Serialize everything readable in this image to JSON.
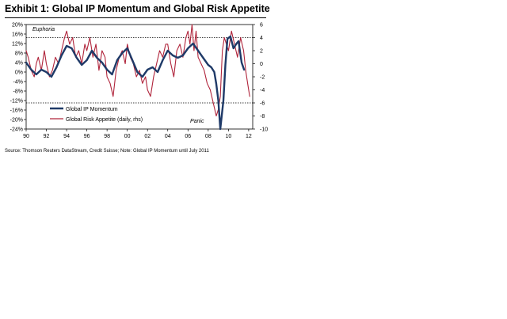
{
  "title": "Exhibit 1: Global IP Momentum and Global Risk Appetite",
  "source": "Source: Thomson Reuters DataStream, Credit Suisse; Note: Global IP Momentum until July 2011",
  "chart_data": {
    "type": "line",
    "x_ticks": [
      "90",
      "92",
      "94",
      "96",
      "98",
      "00",
      "02",
      "04",
      "06",
      "08",
      "10",
      "12"
    ],
    "xlim": [
      1990,
      2012.4
    ],
    "y_left_ticks": [
      "20%",
      "16%",
      "12%",
      "8%",
      "4%",
      "0%",
      "-4%",
      "-8%",
      "-12%",
      "-16%",
      "-20%",
      "-24%"
    ],
    "ylim_left": [
      -24,
      20
    ],
    "y_right_ticks": [
      "6",
      "4",
      "2",
      "0",
      "-2",
      "-4",
      "-6",
      "-8",
      "-10"
    ],
    "ylim_right": [
      -10,
      6
    ],
    "reference_lines_rhs": [
      4,
      -6
    ],
    "annotations": {
      "euphoria": "Euphoria",
      "panic": "Panic"
    },
    "legend": {
      "position": "bottom-left"
    },
    "series": [
      {
        "name": "Global IP Momentum",
        "axis": "left",
        "color": "#1f3a68",
        "x": [
          1990.0,
          1990.5,
          1991.0,
          1991.5,
          1992.0,
          1992.5,
          1993.0,
          1993.5,
          1994.0,
          1994.5,
          1995.0,
          1995.5,
          1996.0,
          1996.5,
          1997.0,
          1997.5,
          1998.0,
          1998.5,
          1999.0,
          1999.5,
          2000.0,
          2000.5,
          2001.0,
          2001.5,
          2002.0,
          2002.5,
          2003.0,
          2003.5,
          2004.0,
          2004.5,
          2005.0,
          2005.5,
          2006.0,
          2006.5,
          2007.0,
          2007.5,
          2008.0,
          2008.3,
          2008.6,
          2008.8,
          2009.0,
          2009.2,
          2009.5,
          2009.7,
          2009.9,
          2010.2,
          2010.5,
          2010.8,
          2011.0,
          2011.3,
          2011.55
        ],
        "y": [
          4,
          1,
          -1,
          1,
          0,
          -2,
          2,
          7,
          11,
          10,
          6,
          3,
          5,
          9,
          6,
          4,
          1,
          -1,
          5,
          8,
          10,
          5,
          0,
          -2,
          1,
          2,
          0,
          5,
          9,
          7,
          6,
          7,
          10,
          12,
          9,
          6,
          3,
          2,
          0,
          -5,
          -12,
          -24,
          -12,
          3,
          14,
          15,
          10,
          12,
          13,
          4,
          1
        ]
      },
      {
        "name": "Global Risk Appetite (daily, rhs)",
        "axis": "right",
        "color": "#b0243b",
        "x": [
          1990.0,
          1990.2,
          1990.5,
          1990.8,
          1991.0,
          1991.2,
          1991.5,
          1991.8,
          1992.0,
          1992.3,
          1992.6,
          1992.9,
          1993.2,
          1993.5,
          1993.8,
          1994.0,
          1994.3,
          1994.6,
          1994.9,
          1995.2,
          1995.5,
          1995.8,
          1996.0,
          1996.3,
          1996.6,
          1996.9,
          1997.2,
          1997.5,
          1997.8,
          1998.0,
          1998.3,
          1998.6,
          1998.9,
          1999.2,
          1999.5,
          1999.8,
          2000.0,
          2000.3,
          2000.6,
          2000.9,
          2001.2,
          2001.5,
          2001.8,
          2002.0,
          2002.3,
          2002.6,
          2002.9,
          2003.2,
          2003.5,
          2003.8,
          2004.0,
          2004.3,
          2004.6,
          2004.9,
          2005.2,
          2005.5,
          2005.8,
          2006.0,
          2006.2,
          2006.4,
          2006.6,
          2006.8,
          2007.0,
          2007.3,
          2007.6,
          2007.9,
          2008.2,
          2008.5,
          2008.8,
          2009.0,
          2009.2,
          2009.4,
          2009.6,
          2009.8,
          2010.0,
          2010.3,
          2010.6,
          2010.9,
          2011.2,
          2011.5,
          2011.7,
          2011.9,
          2012.1
        ],
        "y": [
          2,
          1,
          -1,
          -2,
          0,
          1,
          -1,
          2,
          0,
          -2,
          -1,
          1,
          0,
          2,
          4,
          5,
          3,
          4,
          1,
          2,
          0,
          3,
          2,
          4,
          1,
          3,
          -1,
          2,
          1,
          -2,
          -3,
          -5,
          -1,
          1,
          2,
          0,
          3,
          1,
          0,
          -2,
          -1,
          -3,
          -2,
          -4,
          -5,
          -2,
          0,
          2,
          1,
          3,
          3,
          0,
          -2,
          2,
          3,
          1,
          4,
          5,
          3,
          6,
          2,
          5,
          1,
          0,
          -1,
          -3,
          -4,
          -6,
          -8,
          -7,
          -5,
          2,
          4,
          3,
          2,
          5,
          3,
          1,
          4,
          2,
          -1,
          -3,
          -5
        ]
      }
    ]
  }
}
